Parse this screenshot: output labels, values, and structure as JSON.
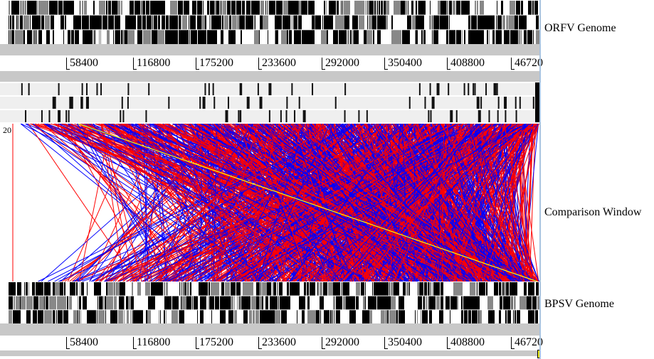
{
  "labels": {
    "top_genome": "ORFV Genome",
    "comparison": "Comparison Window",
    "bottom_genome": "BPSV Genome",
    "comparison_scale_start": "20"
  },
  "top_ruler": [
    "58400",
    "116800",
    "175200",
    "233600",
    "292000",
    "350400",
    "408800",
    "46720"
  ],
  "bottom_ruler": [
    "58400",
    "116800",
    "175200",
    "233600",
    "292000",
    "350400",
    "408800",
    "46720"
  ],
  "colors": {
    "forward_match": "#ff0000",
    "reverse_match": "#0000ff",
    "highlight": "#ffff00",
    "track_gray": "#c8c8c8"
  }
}
